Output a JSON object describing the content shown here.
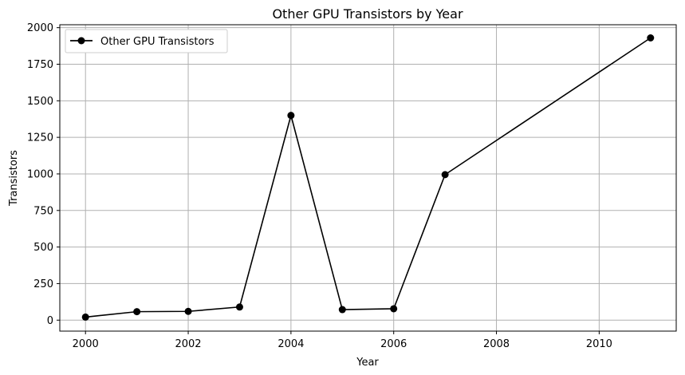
{
  "chart_data": {
    "type": "line",
    "title": "Other GPU Transistors by Year",
    "xlabel": "Year",
    "ylabel": "Transistors",
    "xlim": [
      1999.5,
      2011.5
    ],
    "ylim": [
      -75,
      2020
    ],
    "xticks": [
      2000,
      2002,
      2004,
      2006,
      2008,
      2010
    ],
    "yticks": [
      0,
      250,
      500,
      750,
      1000,
      1250,
      1500,
      1750,
      2000
    ],
    "grid": true,
    "legend_position": "top-left",
    "series": [
      {
        "name": "Other GPU Transistors",
        "color": "#000000",
        "marker": "circle",
        "x": [
          2000,
          2001,
          2002,
          2003,
          2004,
          2005,
          2006,
          2007,
          2011
        ],
        "y": [
          21,
          58,
          60,
          90,
          1400,
          72,
          78,
          995,
          1930
        ]
      }
    ]
  }
}
